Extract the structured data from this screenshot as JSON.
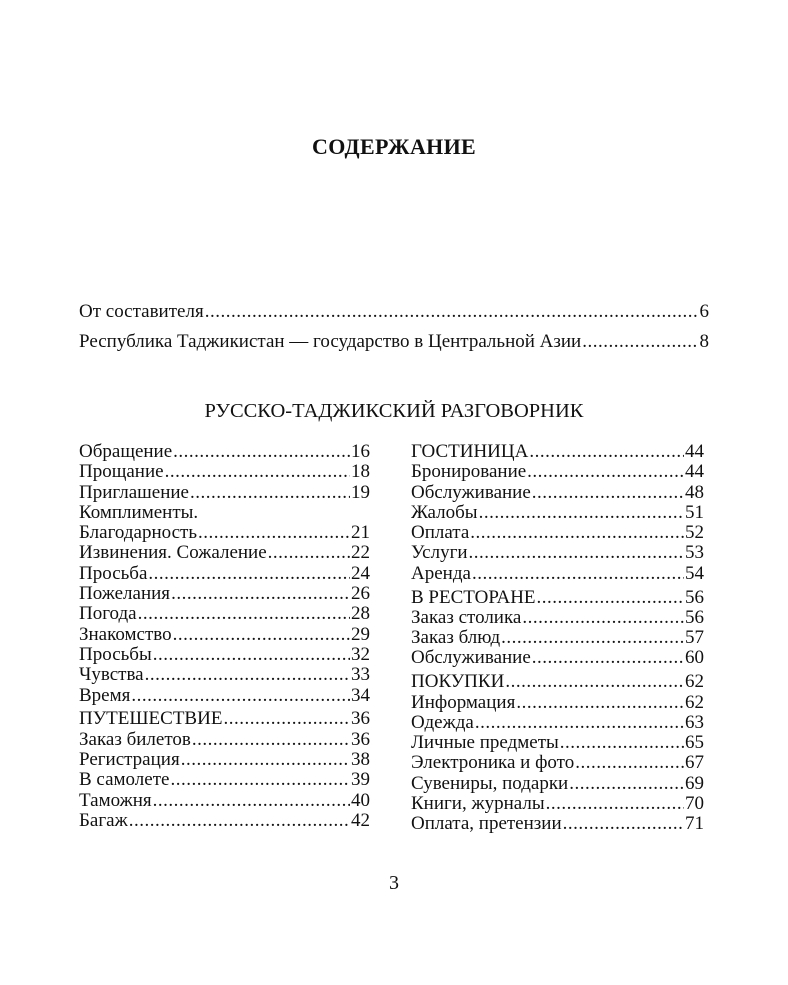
{
  "title": "СОДЕРЖАНИЕ",
  "front_matter": [
    {
      "title": "От составителя",
      "page": "6"
    },
    {
      "title": "Республика Таджикистан — государство в Центральной Азии",
      "page": "8"
    }
  ],
  "section_title": "РУССКО-ТАДЖИКСКИЙ РАЗГОВОРНИК",
  "left_column": [
    [
      {
        "title": "Обращение",
        "page": "16"
      },
      {
        "title": "Прощание",
        "page": "18"
      },
      {
        "title": "Приглашение",
        "page": "19"
      },
      {
        "title": "Комплименты.",
        "page": ""
      },
      {
        "title": "Благодарность",
        "page": "21"
      },
      {
        "title": "Извинения. Сожаление",
        "page": "22"
      },
      {
        "title": "Просьба",
        "page": "24"
      },
      {
        "title": "Пожелания",
        "page": "26"
      },
      {
        "title": "Погода",
        "page": "28"
      },
      {
        "title": "Знакомство",
        "page": "29"
      },
      {
        "title": "Просьбы",
        "page": "32"
      },
      {
        "title": "Чувства",
        "page": "33"
      },
      {
        "title": "Время",
        "page": "34"
      }
    ],
    [
      {
        "title": "ПУТЕШЕСТВИЕ",
        "page": "36"
      },
      {
        "title": "Заказ билетов",
        "page": "36"
      },
      {
        "title": "Регистрация",
        "page": "38"
      },
      {
        "title": "В самолете",
        "page": "39"
      },
      {
        "title": "Таможня",
        "page": "40"
      },
      {
        "title": "Багаж",
        "page": "42"
      }
    ]
  ],
  "right_column": [
    [
      {
        "title": "ГОСТИНИЦА",
        "page": "44"
      },
      {
        "title": "Бронирование",
        "page": "44"
      },
      {
        "title": "Обслуживание",
        "page": "48"
      },
      {
        "title": "Жалобы",
        "page": "51"
      },
      {
        "title": "Оплата",
        "page": "52"
      },
      {
        "title": "Услуги",
        "page": "53"
      },
      {
        "title": "Аренда",
        "page": "54"
      }
    ],
    [
      {
        "title": "В РЕСТОРАНЕ",
        "page": "56"
      },
      {
        "title": "Заказ столика",
        "page": "56"
      },
      {
        "title": "Заказ блюд",
        "page": "57"
      },
      {
        "title": "Обслуживание",
        "page": "60"
      }
    ],
    [
      {
        "title": "ПОКУПКИ",
        "page": "62"
      },
      {
        "title": "Информация",
        "page": "62"
      },
      {
        "title": "Одежда",
        "page": "63"
      },
      {
        "title": "Личные предметы",
        "page": "65"
      },
      {
        "title": "Электроника и фото",
        "page": "67"
      },
      {
        "title": "Сувениры, подарки",
        "page": "69"
      },
      {
        "title": "Книги, журналы",
        "page": "70"
      },
      {
        "title": "Оплата, претензии",
        "page": "71"
      }
    ]
  ],
  "page_number": "3"
}
